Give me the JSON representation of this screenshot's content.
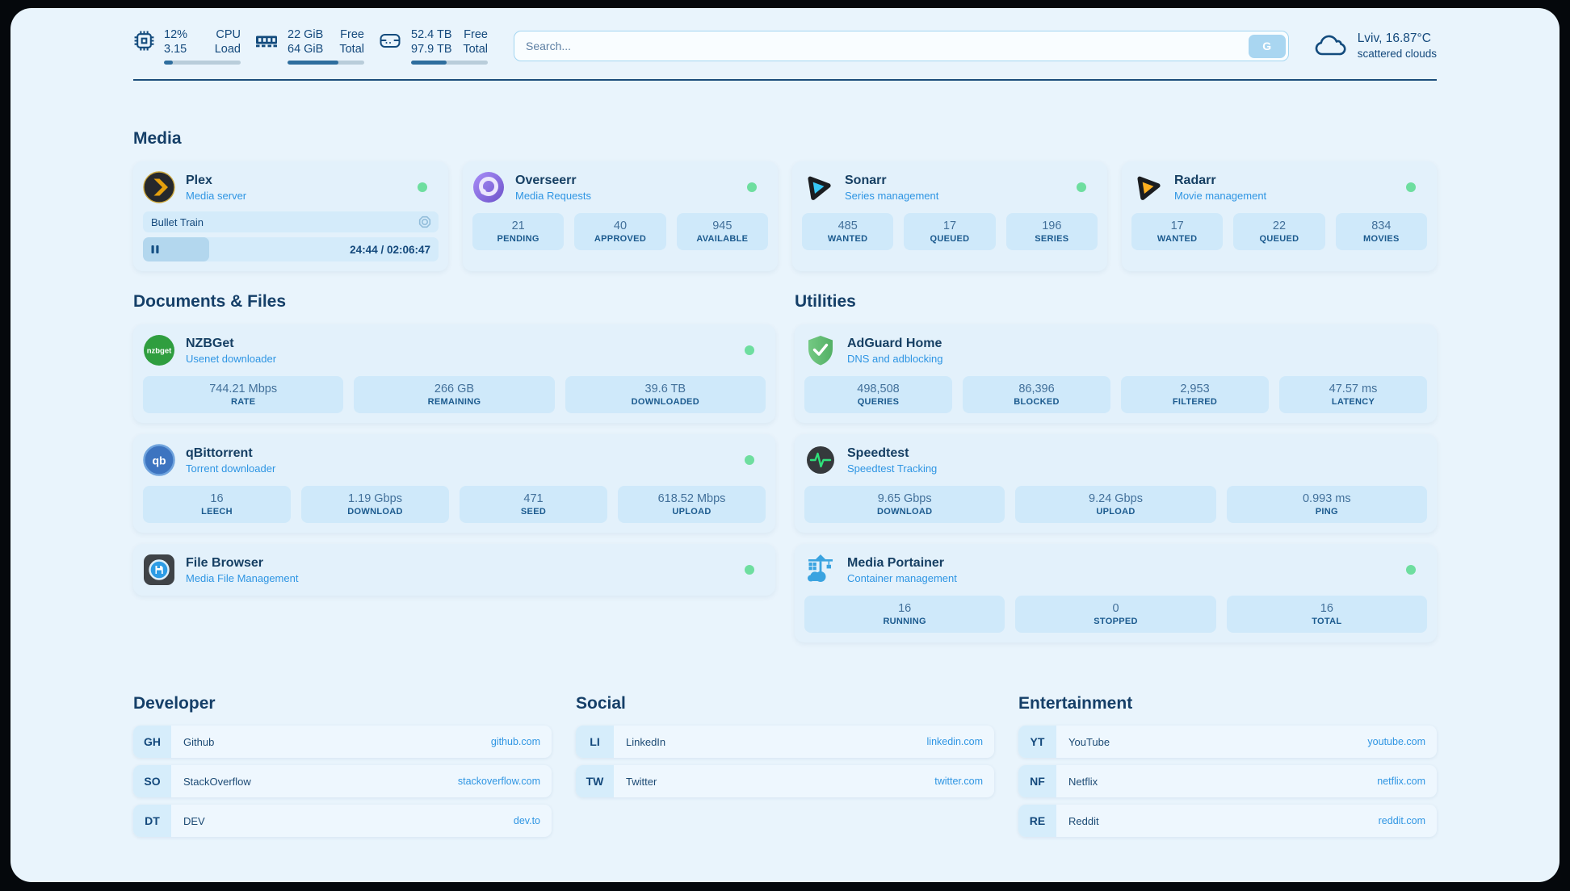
{
  "topbar": {
    "widgets": [
      {
        "id": "cpu",
        "icon": "cpu-icon",
        "value_top": "12%",
        "value_bottom": "3.15",
        "label_top": "CPU",
        "label_bottom": "Load",
        "progress_pct": 12
      },
      {
        "id": "memory",
        "icon": "memory-icon",
        "value_top": "22 GiB",
        "value_bottom": "64 GiB",
        "label_top": "Free",
        "label_bottom": "Total",
        "progress_pct": 66
      },
      {
        "id": "disk",
        "icon": "disk-icon",
        "value_top": "52.4 TB",
        "value_bottom": "97.9 TB",
        "label_top": "Free",
        "label_bottom": "Total",
        "progress_pct": 46
      }
    ],
    "search": {
      "placeholder": "Search...",
      "engine_button": "G"
    },
    "weather": {
      "icon": "cloud-icon",
      "location_temp": "Lviv, 16.87°C",
      "condition": "scattered clouds"
    }
  },
  "sections": {
    "media": {
      "title": "Media",
      "plex": {
        "icon": "plex-icon",
        "title": "Plex",
        "subtitle": "Media server",
        "status": "online",
        "now_playing": {
          "title": "Bullet Train",
          "time_display": "24:44 / 02:06:47",
          "progress_pct": 20,
          "state": "paused"
        }
      },
      "overseerr": {
        "icon": "overseerr-icon",
        "title": "Overseerr",
        "subtitle": "Media Requests",
        "status": "online",
        "stats": [
          {
            "value": "21",
            "label": "PENDING"
          },
          {
            "value": "40",
            "label": "APPROVED"
          },
          {
            "value": "945",
            "label": "AVAILABLE"
          }
        ]
      },
      "sonarr": {
        "icon": "sonarr-icon",
        "title": "Sonarr",
        "subtitle": "Series management",
        "status": "online",
        "stats": [
          {
            "value": "485",
            "label": "WANTED"
          },
          {
            "value": "17",
            "label": "QUEUED"
          },
          {
            "value": "196",
            "label": "SERIES"
          }
        ]
      },
      "radarr": {
        "icon": "radarr-icon",
        "title": "Radarr",
        "subtitle": "Movie management",
        "status": "online",
        "stats": [
          {
            "value": "17",
            "label": "WANTED"
          },
          {
            "value": "22",
            "label": "QUEUED"
          },
          {
            "value": "834",
            "label": "MOVIES"
          }
        ]
      }
    },
    "documents": {
      "title": "Documents & Files",
      "nzbget": {
        "icon": "nzbget-icon",
        "title": "NZBGet",
        "subtitle": "Usenet downloader",
        "status": "online",
        "stats": [
          {
            "value": "744.21 Mbps",
            "label": "RATE"
          },
          {
            "value": "266 GB",
            "label": "REMAINING"
          },
          {
            "value": "39.6 TB",
            "label": "DOWNLOADED"
          }
        ]
      },
      "qbittorrent": {
        "icon": "qbittorrent-icon",
        "title": "qBittorrent",
        "subtitle": "Torrent downloader",
        "status": "online",
        "stats": [
          {
            "value": "16",
            "label": "LEECH"
          },
          {
            "value": "1.19 Gbps",
            "label": "DOWNLOAD"
          },
          {
            "value": "471",
            "label": "SEED"
          },
          {
            "value": "618.52 Mbps",
            "label": "UPLOAD"
          }
        ]
      },
      "filebrowser": {
        "icon": "filebrowser-icon",
        "title": "File Browser",
        "subtitle": "Media File Management",
        "status": "online"
      }
    },
    "utilities": {
      "title": "Utilities",
      "adguard": {
        "icon": "adguard-icon",
        "title": "AdGuard Home",
        "subtitle": "DNS and adblocking",
        "stats": [
          {
            "value": "498,508",
            "label": "QUERIES"
          },
          {
            "value": "86,396",
            "label": "BLOCKED"
          },
          {
            "value": "2,953",
            "label": "FILTERED"
          },
          {
            "value": "47.57 ms",
            "label": "LATENCY"
          }
        ]
      },
      "speedtest": {
        "icon": "speedtest-icon",
        "title": "Speedtest",
        "subtitle": "Speedtest Tracking",
        "stats": [
          {
            "value": "9.65 Gbps",
            "label": "DOWNLOAD"
          },
          {
            "value": "9.24 Gbps",
            "label": "UPLOAD"
          },
          {
            "value": "0.993 ms",
            "label": "PING"
          }
        ]
      },
      "portainer": {
        "icon": "portainer-icon",
        "title": "Media Portainer",
        "subtitle": "Container management",
        "status": "online",
        "stats": [
          {
            "value": "16",
            "label": "RUNNING"
          },
          {
            "value": "0",
            "label": "STOPPED"
          },
          {
            "value": "16",
            "label": "TOTAL"
          }
        ]
      }
    },
    "bookmarks": [
      {
        "title": "Developer",
        "links": [
          {
            "abbr": "GH",
            "name": "Github",
            "url": "github.com"
          },
          {
            "abbr": "SO",
            "name": "StackOverflow",
            "url": "stackoverflow.com"
          },
          {
            "abbr": "DT",
            "name": "DEV",
            "url": "dev.to"
          }
        ]
      },
      {
        "title": "Social",
        "links": [
          {
            "abbr": "LI",
            "name": "LinkedIn",
            "url": "linkedin.com"
          },
          {
            "abbr": "TW",
            "name": "Twitter",
            "url": "twitter.com"
          }
        ]
      },
      {
        "title": "Entertainment",
        "links": [
          {
            "abbr": "YT",
            "name": "YouTube",
            "url": "youtube.com"
          },
          {
            "abbr": "NF",
            "name": "Netflix",
            "url": "netflix.com"
          },
          {
            "abbr": "RE",
            "name": "Reddit",
            "url": "reddit.com"
          }
        ]
      }
    ]
  },
  "colors": {
    "page_bg": "#e9f4fc",
    "card_bg": "#e3f1fb",
    "stat_bg": "#cfe9fa",
    "dark_text": "#14497c",
    "accent_blue": "#2e95e3",
    "status_online": "#6ede9f",
    "progress_fill": "#2e6e9e",
    "plex_orange": "#e5a00d",
    "sonarr_cyan": "#38c6f4",
    "radarr_gold": "#ffb020",
    "adguard_green": "#67c27b"
  }
}
